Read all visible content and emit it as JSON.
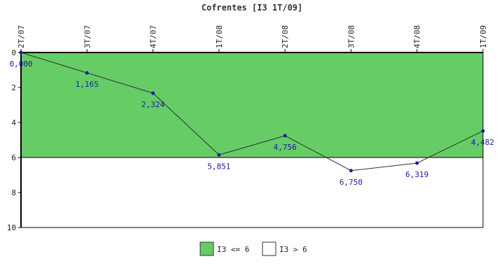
{
  "chart_data": {
    "type": "line",
    "title": "Cofrentes [I3 1T/09]",
    "categories": [
      "2T/07",
      "3T/07",
      "4T/07",
      "1T/08",
      "2T/08",
      "3T/08",
      "4T/08",
      "1T/09"
    ],
    "series": [
      {
        "values": [
          0.0,
          1.165,
          2.324,
          5.851,
          4.756,
          6.75,
          6.319,
          4.482
        ]
      }
    ],
    "data_labels": [
      "0,000",
      "1,165",
      "2,324",
      "5,851",
      "4,756",
      "6,750",
      "6,319",
      "4,482"
    ],
    "y_axis": {
      "min": 0,
      "max": 10,
      "reversed": true,
      "ticks": [
        0,
        2,
        4,
        6,
        8,
        10
      ]
    },
    "threshold": 6,
    "bands": [
      {
        "label": "I3 <= 6",
        "from": 0,
        "to": 6,
        "color": "#66cc66"
      },
      {
        "label": "I3 > 6",
        "from": 6,
        "to": 10,
        "color": "#ffffff"
      }
    ],
    "line_color": "#333333",
    "marker_color": "#1a1aa6",
    "grid": false,
    "legend_position": "bottom"
  }
}
